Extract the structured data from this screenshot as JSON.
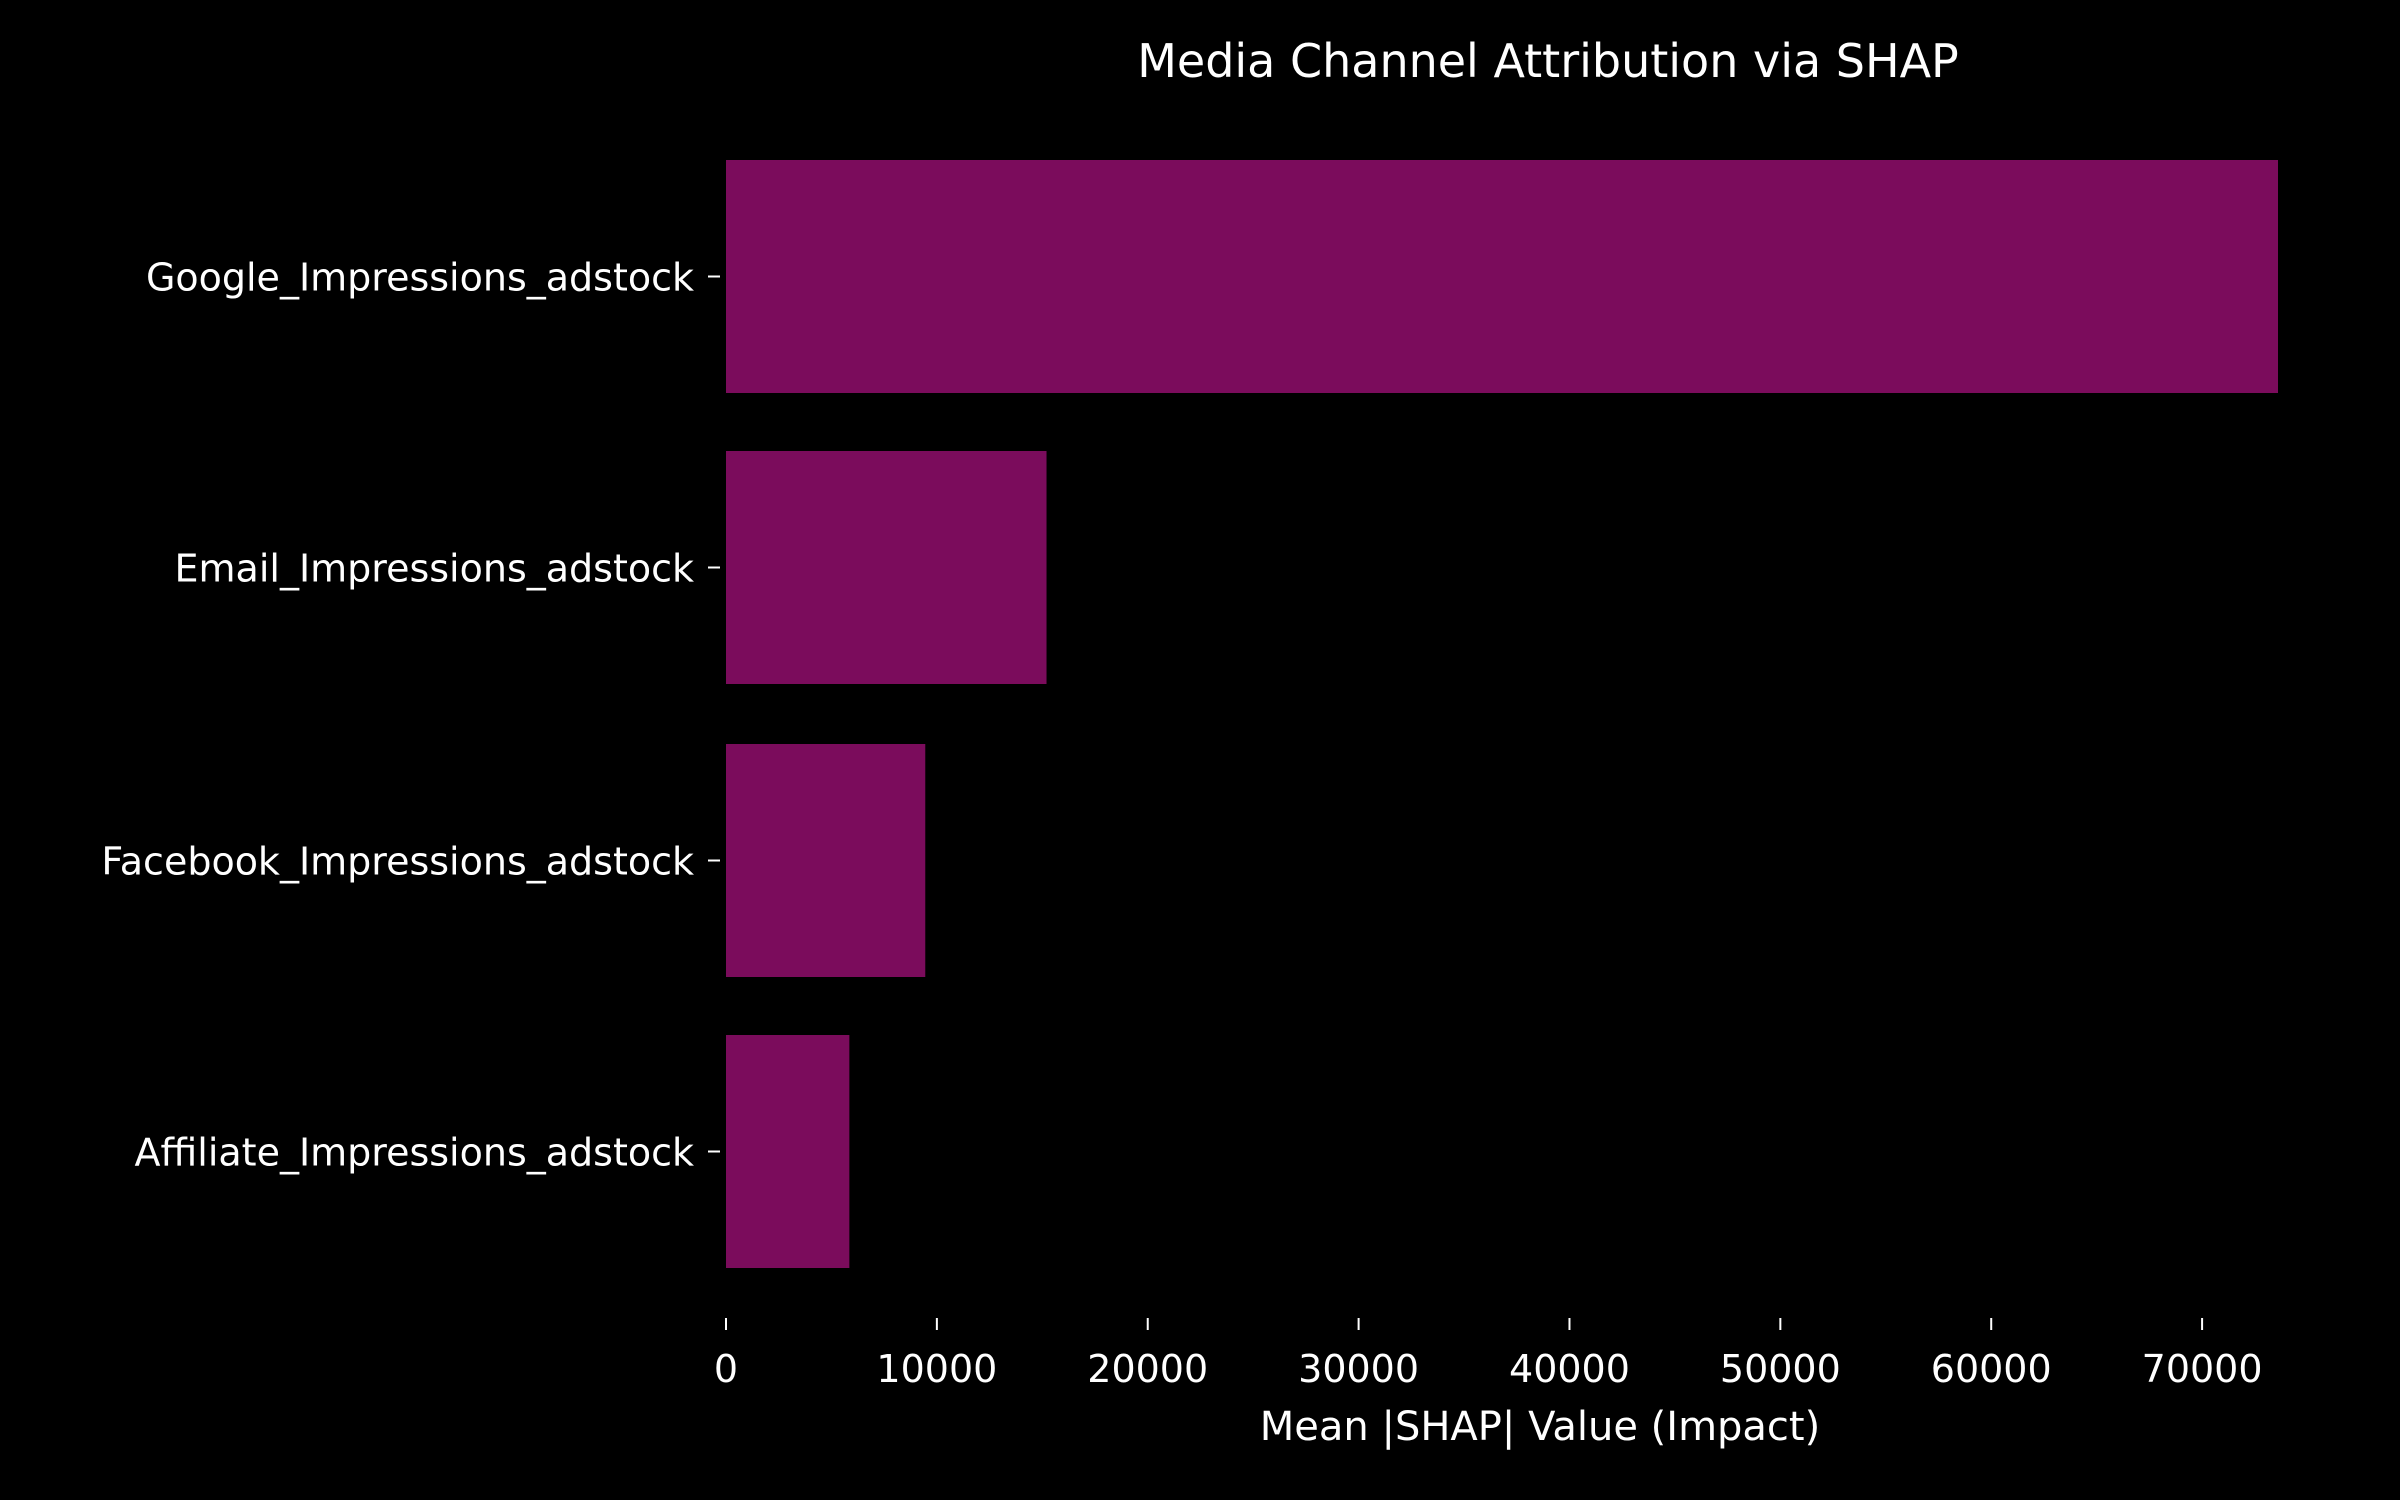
{
  "chart_data": {
    "type": "bar",
    "orientation": "horizontal",
    "title": "Media Channel Attribution via SHAP",
    "xlabel": "Mean |SHAP| Value (Impact)",
    "ylabel": "",
    "categories": [
      "Google_Impressions_adstock",
      "Email_Impressions_adstock",
      "Facebook_Impressions_adstock",
      "Affiliate_Impressions_adstock"
    ],
    "values": [
      73600,
      15200,
      9450,
      5850
    ],
    "xlim": [
      0,
      73600
    ],
    "xticks": [
      0,
      10000,
      20000,
      30000,
      40000,
      50000,
      60000,
      70000
    ],
    "xtick_labels": [
      "0",
      "10000",
      "20000",
      "30000",
      "40000",
      "50000",
      "60000",
      "70000"
    ],
    "grid": false,
    "legend": "none",
    "colors": {
      "background": "#000000",
      "bar": "#7b0c5c",
      "text": "#ffffff",
      "tick": "#ffffff"
    }
  }
}
